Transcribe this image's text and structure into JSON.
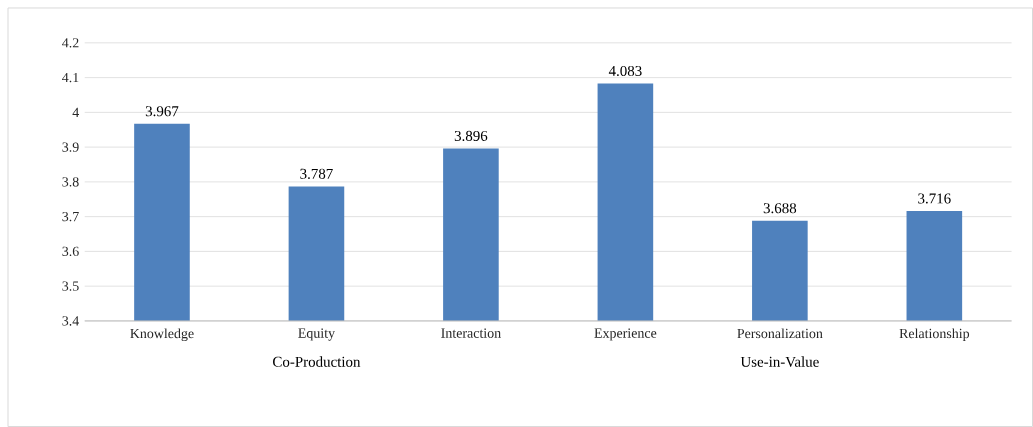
{
  "chart_data": {
    "type": "bar",
    "categories": [
      "Knowledge",
      "Equity",
      "Interaction",
      "Experience",
      "Personalization",
      "Relationship"
    ],
    "values": [
      3.967,
      3.787,
      3.896,
      4.083,
      3.688,
      3.716
    ],
    "color": "#4f81bd",
    "ylim": [
      3.4,
      4.2
    ],
    "yticks": [
      3.4,
      3.5,
      3.6,
      3.7,
      3.8,
      3.9,
      4,
      4.1,
      4.2
    ],
    "grid": "y",
    "data_labels": true,
    "annotations": [
      "Co-Production",
      "Use-in-Value"
    ]
  }
}
